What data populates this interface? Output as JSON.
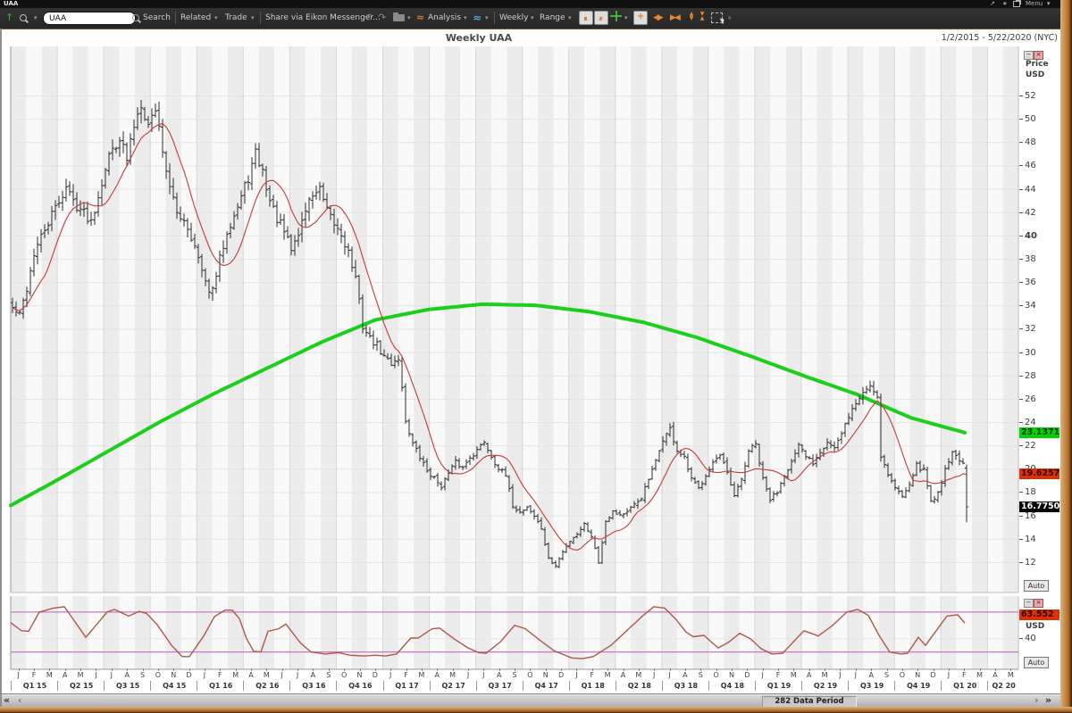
{
  "window": {
    "title": "UAA",
    "menu_label": "Menu"
  },
  "icons": {
    "caret": "▾",
    "up_arrow": "↑",
    "undo": "↶",
    "redo": "↷",
    "left_tri": "◀",
    "right_tri": "▶",
    "up_tri": "▲",
    "down_tri": "▼",
    "chevrons_more": "»",
    "diag_arrow": "↗",
    "asterisk": "∗",
    "minimize": "−",
    "close": "×",
    "nav_first": "«",
    "nav_prev": "‹",
    "nav_next": "›",
    "nav_last": "»",
    "wave": "≈",
    "waves": "≈"
  },
  "toolbar": {
    "symbol_input": "UAA",
    "search_label": "Search",
    "related_label": "Related",
    "trade_label": "Trade",
    "share_label": "Share via Eikon Messenger...",
    "analysis_label": "Analysis",
    "interval_label": "Weekly",
    "range_label": "Range"
  },
  "chart_header": {
    "title": "Weekly UAA",
    "date_range": "1/2/2015 - 5/22/2020 (NYC)"
  },
  "price_axis": {
    "name_line1": "Price",
    "name_line2": "USD",
    "ticks": [
      52,
      50,
      48,
      46,
      44,
      42,
      40,
      38,
      36,
      34,
      32,
      30,
      28,
      26,
      24,
      22,
      20,
      18,
      16,
      14,
      12
    ],
    "bold_tick": 40,
    "green_ma_label": "23.1371",
    "red_ma_label": "19.6257",
    "last_price_label": "16.7750",
    "auto_label": "Auto",
    "colors": {
      "green_box": "#00d400",
      "red_box": "#e03000",
      "black_box": "#000000"
    }
  },
  "indicator_axis": {
    "value_label": "63.552",
    "unit": "USD",
    "tick": "40",
    "auto_label": "Auto",
    "value_box_color": "#e03000"
  },
  "x_axis": {
    "months": [
      "J",
      "F",
      "M",
      "A",
      "M",
      "J",
      "J",
      "A",
      "S",
      "O",
      "N",
      "D",
      "J",
      "F",
      "M",
      "A",
      "M",
      "J",
      "J",
      "A",
      "S",
      "O",
      "N",
      "D",
      "J",
      "F",
      "M",
      "A",
      "M",
      "J",
      "J",
      "A",
      "S",
      "O",
      "N",
      "D",
      "J",
      "F",
      "M",
      "A",
      "M",
      "J",
      "J",
      "A",
      "S",
      "O",
      "N",
      "D",
      "J",
      "F",
      "M",
      "A",
      "M",
      "J",
      "J",
      "A",
      "S",
      "O",
      "N",
      "D",
      "J",
      "F",
      "M",
      "A",
      "M"
    ],
    "quarters": [
      "Q1 15",
      "Q2 15",
      "Q3 15",
      "Q4 15",
      "Q1 16",
      "Q2 16",
      "Q3 16",
      "Q4 16",
      "Q1 17",
      "Q2 17",
      "Q3 17",
      "Q4 17",
      "Q1 18",
      "Q2 18",
      "Q3 18",
      "Q4 18",
      "Q1 19",
      "Q2 19",
      "Q3 19",
      "Q4 19",
      "Q1 20",
      "Q2 20"
    ]
  },
  "status_bar": {
    "label": "282 Data Period"
  },
  "chart_data": {
    "type": "ohlc",
    "symbol": "UAA",
    "interval": "Weekly",
    "title": "Weekly UAA",
    "x_range": "1/2/2015 - 5/22/2020",
    "weeks_total": 282,
    "weeks_with_data": 268,
    "price_axis_range": [
      9.43,
      56.25
    ],
    "price_unit": "USD",
    "last_close": 16.775,
    "red_ma_last": 19.6257,
    "green_ma_last": 23.1371,
    "close_anchors": [
      [
        0,
        33.8
      ],
      [
        2,
        33.2
      ],
      [
        4,
        35.5
      ],
      [
        6,
        38.5
      ],
      [
        9,
        40.5
      ],
      [
        13,
        43.0
      ],
      [
        15,
        44.2
      ],
      [
        17,
        43.0
      ],
      [
        20,
        42.0
      ],
      [
        22,
        41.3
      ],
      [
        24,
        43.5
      ],
      [
        26,
        46.0
      ],
      [
        28,
        47.5
      ],
      [
        30,
        48.5
      ],
      [
        32,
        46.5
      ],
      [
        34,
        49.5
      ],
      [
        36,
        51.5
      ],
      [
        38,
        49.5
      ],
      [
        40,
        51.0
      ],
      [
        42,
        47.5
      ],
      [
        44,
        44.0
      ],
      [
        46,
        42.0
      ],
      [
        48,
        41.5
      ],
      [
        50,
        40.0
      ],
      [
        52,
        38.0
      ],
      [
        54,
        35.8
      ],
      [
        56,
        35.2
      ],
      [
        58,
        38.0
      ],
      [
        60,
        40.5
      ],
      [
        63,
        42.5
      ],
      [
        66,
        45.0
      ],
      [
        68,
        47.0
      ],
      [
        70,
        45.5
      ],
      [
        72,
        43.0
      ],
      [
        74,
        41.5
      ],
      [
        76,
        40.3
      ],
      [
        78,
        38.8
      ],
      [
        80,
        40.2
      ],
      [
        82,
        42.3
      ],
      [
        84,
        43.6
      ],
      [
        86,
        43.9
      ],
      [
        88,
        42.0
      ],
      [
        90,
        41.0
      ],
      [
        92,
        40.2
      ],
      [
        94,
        38.6
      ],
      [
        96,
        36.3
      ],
      [
        98,
        32.3
      ],
      [
        100,
        31.2
      ],
      [
        102,
        30.6
      ],
      [
        104,
        29.6
      ],
      [
        106,
        29.1
      ],
      [
        108,
        29.6
      ],
      [
        110,
        24.2
      ],
      [
        112,
        22.2
      ],
      [
        114,
        21.0
      ],
      [
        116,
        19.9
      ],
      [
        118,
        19.2
      ],
      [
        120,
        18.6
      ],
      [
        122,
        19.6
      ],
      [
        124,
        20.6
      ],
      [
        126,
        20.1
      ],
      [
        128,
        21.1
      ],
      [
        130,
        21.6
      ],
      [
        132,
        22.4
      ],
      [
        134,
        21.1
      ],
      [
        136,
        20.1
      ],
      [
        138,
        19.4
      ],
      [
        140,
        16.9
      ],
      [
        142,
        16.3
      ],
      [
        144,
        16.8
      ],
      [
        146,
        16.0
      ],
      [
        148,
        14.9
      ],
      [
        150,
        12.3
      ],
      [
        152,
        11.7
      ],
      [
        154,
        12.9
      ],
      [
        156,
        13.9
      ],
      [
        158,
        14.5
      ],
      [
        160,
        15.3
      ],
      [
        162,
        14.3
      ],
      [
        164,
        12.0
      ],
      [
        166,
        15.6
      ],
      [
        168,
        16.4
      ],
      [
        170,
        16.1
      ],
      [
        172,
        16.3
      ],
      [
        174,
        16.9
      ],
      [
        176,
        17.6
      ],
      [
        178,
        19.1
      ],
      [
        180,
        20.6
      ],
      [
        182,
        22.6
      ],
      [
        184,
        23.4
      ],
      [
        186,
        21.6
      ],
      [
        188,
        20.9
      ],
      [
        190,
        19.1
      ],
      [
        192,
        18.3
      ],
      [
        194,
        19.6
      ],
      [
        196,
        20.6
      ],
      [
        198,
        21.1
      ],
      [
        200,
        19.6
      ],
      [
        202,
        17.6
      ],
      [
        204,
        19.1
      ],
      [
        206,
        21.6
      ],
      [
        208,
        22.1
      ],
      [
        210,
        19.1
      ],
      [
        212,
        17.4
      ],
      [
        214,
        18.1
      ],
      [
        216,
        19.6
      ],
      [
        218,
        20.6
      ],
      [
        220,
        21.9
      ],
      [
        222,
        21.1
      ],
      [
        224,
        20.6
      ],
      [
        226,
        21.6
      ],
      [
        228,
        22.4
      ],
      [
        230,
        21.8
      ],
      [
        232,
        22.9
      ],
      [
        234,
        24.6
      ],
      [
        236,
        25.6
      ],
      [
        238,
        26.6
      ],
      [
        240,
        27.2
      ],
      [
        242,
        26.3
      ],
      [
        243,
        21.2
      ],
      [
        245,
        19.6
      ],
      [
        247,
        18.4
      ],
      [
        249,
        17.7
      ],
      [
        251,
        18.9
      ],
      [
        253,
        20.3
      ],
      [
        255,
        19.9
      ],
      [
        257,
        17.3
      ],
      [
        259,
        17.9
      ],
      [
        261,
        20.1
      ],
      [
        263,
        21.4
      ],
      [
        265,
        20.9
      ],
      [
        266,
        20.3
      ],
      [
        267,
        16.775
      ]
    ],
    "green_ma_anchors": [
      [
        0,
        16.9
      ],
      [
        12,
        18.9
      ],
      [
        27,
        21.5
      ],
      [
        42,
        24.1
      ],
      [
        57,
        26.5
      ],
      [
        72,
        28.7
      ],
      [
        87,
        30.9
      ],
      [
        102,
        32.8
      ],
      [
        117,
        33.7
      ],
      [
        132,
        34.15
      ],
      [
        147,
        34.05
      ],
      [
        162,
        33.5
      ],
      [
        177,
        32.6
      ],
      [
        192,
        31.3
      ],
      [
        207,
        29.7
      ],
      [
        222,
        28.0
      ],
      [
        237,
        26.4
      ],
      [
        252,
        24.4
      ],
      [
        267,
        23.1371
      ]
    ],
    "oscillator": {
      "scale_range": [
        -6,
        104
      ],
      "upper_band": 80,
      "lower_band": 20,
      "visible_tick": 40,
      "last_value": 63.552,
      "anchors": [
        [
          0,
          64
        ],
        [
          3,
          52
        ],
        [
          5,
          51
        ],
        [
          8,
          80
        ],
        [
          12,
          86
        ],
        [
          15,
          88
        ],
        [
          17,
          73
        ],
        [
          21,
          42
        ],
        [
          27,
          80
        ],
        [
          29,
          84
        ],
        [
          33,
          74
        ],
        [
          36,
          81
        ],
        [
          38,
          78
        ],
        [
          41,
          61
        ],
        [
          45,
          30
        ],
        [
          48,
          13
        ],
        [
          50,
          13
        ],
        [
          54,
          44
        ],
        [
          57,
          73
        ],
        [
          60,
          83
        ],
        [
          62,
          83
        ],
        [
          64,
          70
        ],
        [
          66,
          40
        ],
        [
          68,
          21
        ],
        [
          70,
          20
        ],
        [
          72,
          51
        ],
        [
          75,
          55
        ],
        [
          77,
          62
        ],
        [
          81,
          34
        ],
        [
          84,
          20
        ],
        [
          88,
          17
        ],
        [
          92,
          19
        ],
        [
          95,
          15
        ],
        [
          99,
          14
        ],
        [
          102,
          15
        ],
        [
          105,
          14
        ],
        [
          108,
          17
        ],
        [
          112,
          41
        ],
        [
          114,
          41
        ],
        [
          118,
          55
        ],
        [
          120,
          56
        ],
        [
          124,
          40
        ],
        [
          128,
          26
        ],
        [
          131,
          19
        ],
        [
          133,
          18
        ],
        [
          137,
          35
        ],
        [
          141,
          60
        ],
        [
          144,
          55
        ],
        [
          148,
          38
        ],
        [
          152,
          22
        ],
        [
          157,
          11
        ],
        [
          160,
          10
        ],
        [
          163,
          13
        ],
        [
          168,
          30
        ],
        [
          173,
          55
        ],
        [
          177,
          75
        ],
        [
          180,
          88
        ],
        [
          183,
          86
        ],
        [
          186,
          70
        ],
        [
          189,
          50
        ],
        [
          191,
          43
        ],
        [
          194,
          45
        ],
        [
          198,
          26
        ],
        [
          201,
          35
        ],
        [
          204,
          48
        ],
        [
          207,
          40
        ],
        [
          210,
          25
        ],
        [
          213,
          17
        ],
        [
          216,
          18
        ],
        [
          219,
          35
        ],
        [
          222,
          52
        ],
        [
          226,
          44
        ],
        [
          230,
          60
        ],
        [
          234,
          80
        ],
        [
          237,
          84
        ],
        [
          240,
          75
        ],
        [
          243,
          45
        ],
        [
          246,
          20
        ],
        [
          249,
          17
        ],
        [
          251,
          18
        ],
        [
          254,
          42
        ],
        [
          256,
          30
        ],
        [
          259,
          52
        ],
        [
          262,
          74
        ],
        [
          265,
          76
        ],
        [
          267,
          63.552
        ]
      ]
    },
    "colors": {
      "bars": "#2e2e2e",
      "red_ma": "#c23b3b",
      "green_ma": "#1ccf1c",
      "oscillator": "#b05848",
      "bands": "#c678c6",
      "stripe_even": "#ececec",
      "stripe_odd": "#f9f9f9"
    }
  }
}
